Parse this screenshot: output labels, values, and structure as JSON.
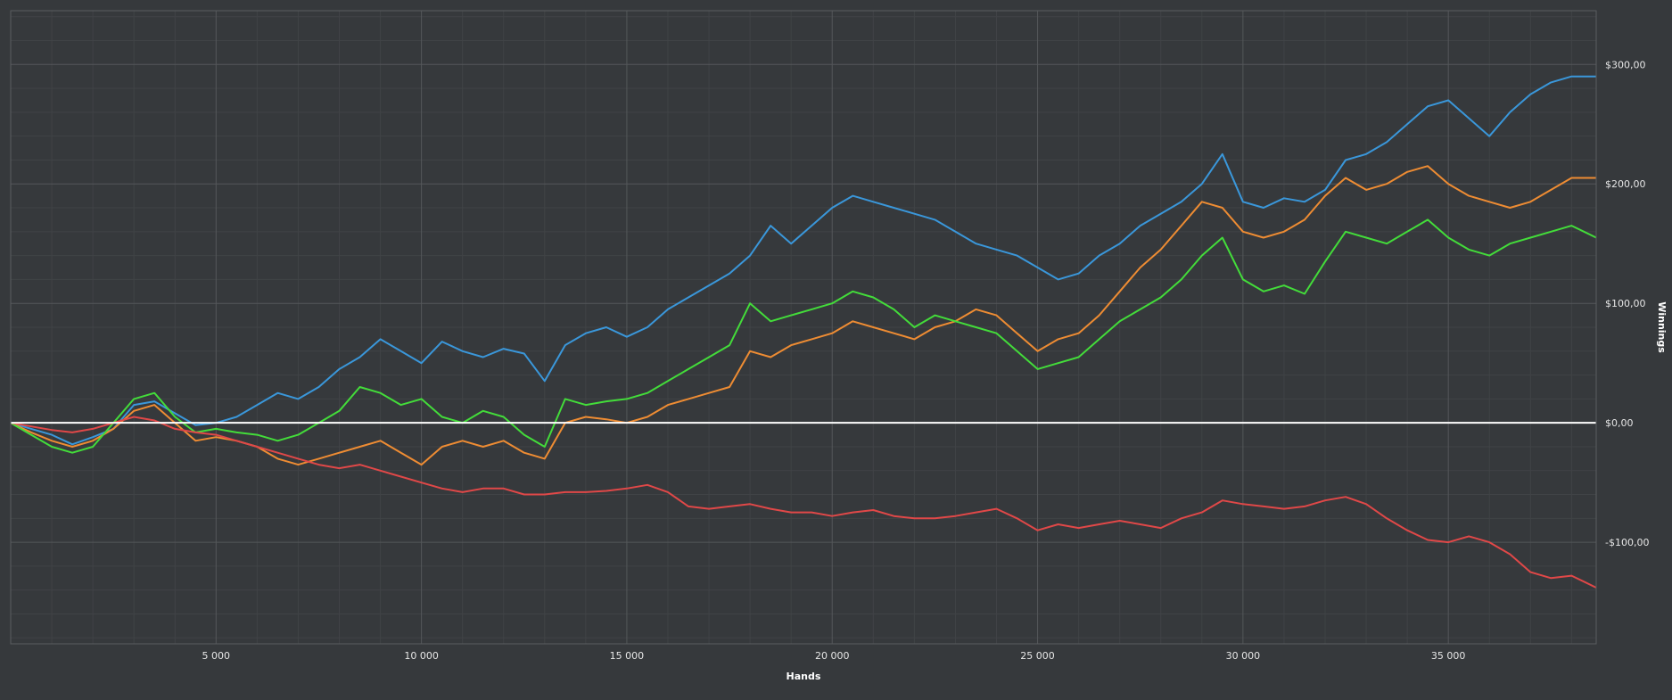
{
  "chart_data": {
    "type": "line",
    "xlabel": "Hands",
    "ylabel": "Winnings",
    "xlim": [
      0,
      38600
    ],
    "ylim": [
      -185,
      345
    ],
    "x_ticks": [
      5000,
      10000,
      15000,
      20000,
      25000,
      30000,
      35000
    ],
    "x_tick_labels": [
      "5 000",
      "10 000",
      "15 000",
      "20 000",
      "25 000",
      "30 000",
      "35 000"
    ],
    "y_ticks": [
      300,
      200,
      100,
      0,
      -100
    ],
    "y_tick_labels": [
      "$300,00",
      "$200,00",
      "$100,00",
      "$0,00",
      "-$100,00"
    ],
    "grid": true,
    "legend": "none",
    "colors": {
      "background": "#36393c",
      "grid_major": "#54575a",
      "grid_minor": "#404346",
      "zero_line": "#ffffff"
    },
    "series": [
      {
        "color": "#3a97da",
        "x": [
          0,
          500,
          1000,
          1500,
          2000,
          2500,
          3000,
          3500,
          4000,
          4500,
          5000,
          5500,
          6000,
          6500,
          7000,
          7500,
          8000,
          8500,
          9000,
          9500,
          10000,
          10500,
          11000,
          11500,
          12000,
          12500,
          13000,
          13500,
          14000,
          14500,
          15000,
          15500,
          16000,
          16500,
          17000,
          17500,
          18000,
          18500,
          19000,
          19500,
          20000,
          20500,
          21000,
          21500,
          22000,
          22500,
          23000,
          23500,
          24000,
          24500,
          25000,
          25500,
          26000,
          26500,
          27000,
          27500,
          28000,
          28500,
          29000,
          29500,
          30000,
          30500,
          31000,
          31500,
          32000,
          32500,
          33000,
          33500,
          34000,
          34500,
          35000,
          35500,
          36000,
          36500,
          37000,
          37500,
          38000,
          38600
        ],
        "y": [
          0,
          -5,
          -10,
          -18,
          -12,
          -5,
          15,
          18,
          8,
          -2,
          0,
          5,
          15,
          25,
          20,
          30,
          45,
          55,
          70,
          60,
          50,
          68,
          60,
          55,
          62,
          58,
          35,
          65,
          75,
          80,
          72,
          80,
          95,
          105,
          115,
          125,
          140,
          165,
          150,
          165,
          180,
          190,
          185,
          180,
          175,
          170,
          160,
          150,
          145,
          140,
          130,
          120,
          125,
          140,
          150,
          165,
          175,
          185,
          200,
          225,
          185,
          180,
          188,
          185,
          195,
          220,
          225,
          235,
          250,
          265,
          270,
          255,
          240,
          260,
          275,
          285,
          290,
          290
        ]
      },
      {
        "color": "#ee8c33",
        "x": [
          0,
          500,
          1000,
          1500,
          2000,
          2500,
          3000,
          3500,
          4000,
          4500,
          5000,
          5500,
          6000,
          6500,
          7000,
          7500,
          8000,
          8500,
          9000,
          9500,
          10000,
          10500,
          11000,
          11500,
          12000,
          12500,
          13000,
          13500,
          14000,
          14500,
          15000,
          15500,
          16000,
          16500,
          17000,
          17500,
          18000,
          18500,
          19000,
          19500,
          20000,
          20500,
          21000,
          21500,
          22000,
          22500,
          23000,
          23500,
          24000,
          24500,
          25000,
          25500,
          26000,
          26500,
          27000,
          27500,
          28000,
          28500,
          29000,
          29500,
          30000,
          30500,
          31000,
          31500,
          32000,
          32500,
          33000,
          33500,
          34000,
          34500,
          35000,
          35500,
          36000,
          36500,
          37000,
          37500,
          38000,
          38600
        ],
        "y": [
          0,
          -8,
          -15,
          -20,
          -15,
          -5,
          10,
          15,
          0,
          -15,
          -12,
          -15,
          -20,
          -30,
          -35,
          -30,
          -25,
          -20,
          -15,
          -25,
          -35,
          -20,
          -15,
          -20,
          -15,
          -25,
          -30,
          0,
          5,
          3,
          0,
          5,
          15,
          20,
          25,
          30,
          60,
          55,
          65,
          70,
          75,
          85,
          80,
          75,
          70,
          80,
          85,
          95,
          90,
          75,
          60,
          70,
          75,
          90,
          110,
          130,
          145,
          165,
          185,
          180,
          160,
          155,
          160,
          170,
          190,
          205,
          195,
          200,
          210,
          215,
          200,
          190,
          185,
          180,
          185,
          195,
          205,
          205
        ]
      },
      {
        "color": "#43dc3a",
        "x": [
          0,
          500,
          1000,
          1500,
          2000,
          2500,
          3000,
          3500,
          4000,
          4500,
          5000,
          5500,
          6000,
          6500,
          7000,
          7500,
          8000,
          8500,
          9000,
          9500,
          10000,
          10500,
          11000,
          11500,
          12000,
          12500,
          13000,
          13500,
          14000,
          14500,
          15000,
          15500,
          16000,
          16500,
          17000,
          17500,
          18000,
          18500,
          19000,
          19500,
          20000,
          20500,
          21000,
          21500,
          22000,
          22500,
          23000,
          23500,
          24000,
          24500,
          25000,
          25500,
          26000,
          26500,
          27000,
          27500,
          28000,
          28500,
          29000,
          29500,
          30000,
          30500,
          31000,
          31500,
          32000,
          32500,
          33000,
          33500,
          34000,
          34500,
          35000,
          35500,
          36000,
          36500,
          37000,
          37500,
          38000,
          38600
        ],
        "y": [
          0,
          -10,
          -20,
          -25,
          -20,
          0,
          20,
          25,
          5,
          -8,
          -5,
          -8,
          -10,
          -15,
          -10,
          0,
          10,
          30,
          25,
          15,
          20,
          5,
          0,
          10,
          5,
          -10,
          -20,
          20,
          15,
          18,
          20,
          25,
          35,
          45,
          55,
          65,
          100,
          85,
          90,
          95,
          100,
          110,
          105,
          95,
          80,
          90,
          85,
          80,
          75,
          60,
          45,
          50,
          55,
          70,
          85,
          95,
          105,
          120,
          140,
          155,
          120,
          110,
          115,
          108,
          135,
          160,
          155,
          150,
          160,
          170,
          155,
          145,
          140,
          150,
          155,
          160,
          165,
          155
        ]
      },
      {
        "color": "#e04848",
        "x": [
          0,
          500,
          1000,
          1500,
          2000,
          2500,
          3000,
          3500,
          4000,
          4500,
          5000,
          5500,
          6000,
          6500,
          7000,
          7500,
          8000,
          8500,
          9000,
          9500,
          10000,
          10500,
          11000,
          11500,
          12000,
          12500,
          13000,
          13500,
          14000,
          14500,
          15000,
          15500,
          16000,
          16500,
          17000,
          17500,
          18000,
          18500,
          19000,
          19500,
          20000,
          20500,
          21000,
          21500,
          22000,
          22500,
          23000,
          23500,
          24000,
          24500,
          25000,
          25500,
          26000,
          26500,
          27000,
          27500,
          28000,
          28500,
          29000,
          29500,
          30000,
          30500,
          31000,
          31500,
          32000,
          32500,
          33000,
          33500,
          34000,
          34500,
          35000,
          35500,
          36000,
          36500,
          37000,
          37500,
          38000,
          38600
        ],
        "y": [
          0,
          -3,
          -6,
          -8,
          -5,
          0,
          5,
          2,
          -5,
          -8,
          -10,
          -15,
          -20,
          -25,
          -30,
          -35,
          -38,
          -35,
          -40,
          -45,
          -50,
          -55,
          -58,
          -55,
          -55,
          -60,
          -60,
          -58,
          -58,
          -57,
          -55,
          -52,
          -58,
          -70,
          -72,
          -70,
          -68,
          -72,
          -75,
          -75,
          -78,
          -75,
          -73,
          -78,
          -80,
          -80,
          -78,
          -75,
          -72,
          -80,
          -90,
          -85,
          -88,
          -85,
          -82,
          -85,
          -88,
          -80,
          -75,
          -65,
          -68,
          -70,
          -72,
          -70,
          -65,
          -62,
          -68,
          -80,
          -90,
          -98,
          -100,
          -95,
          -100,
          -110,
          -125,
          -130,
          -128,
          -138
        ]
      }
    ]
  }
}
